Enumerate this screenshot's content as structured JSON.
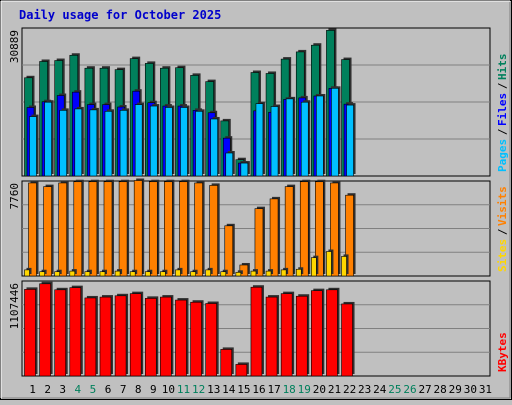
{
  "title": "Daily usage for October 2025",
  "colors": {
    "background": "#c0c0c0",
    "title": "#0000cc",
    "plot_bg": "#c0c0c0",
    "grid": "#808080",
    "hits": "#00805c",
    "files": "#0000ff",
    "pages": "#00c0ff",
    "visits": "#ff8000",
    "sites": "#ffd700",
    "kbytes": "#ff0000",
    "day_normal": "#000000",
    "day_weekend": "#00805c"
  },
  "chart_data": [
    {
      "type": "bar",
      "name": "hits-files-pages",
      "categories": [
        "1",
        "2",
        "3",
        "4",
        "5",
        "6",
        "7",
        "8",
        "9",
        "10",
        "11",
        "12",
        "13",
        "14",
        "15",
        "16",
        "17",
        "18",
        "19",
        "20",
        "21",
        "22",
        "23",
        "24",
        "25",
        "26",
        "27",
        "28",
        "29",
        "30",
        "31"
      ],
      "max_label": "30889",
      "ylim": [
        0,
        30889
      ],
      "side_labels": [
        "Pages",
        "Files",
        "Hits"
      ],
      "series": [
        {
          "name": "Hits",
          "values": [
            20500,
            23900,
            24100,
            25200,
            22500,
            22500,
            22200,
            24500,
            23500,
            22500,
            22600,
            21000,
            19700,
            11500,
            3400,
            21600,
            21400,
            24400,
            25900,
            27300,
            30400,
            24300,
            null,
            null,
            null,
            null,
            null,
            null,
            null,
            null,
            null
          ]
        },
        {
          "name": "Files",
          "values": [
            14300,
            15500,
            16800,
            17500,
            14900,
            14900,
            14400,
            17700,
            15300,
            14600,
            14600,
            13700,
            13200,
            7900,
            2700,
            13600,
            13300,
            16000,
            16300,
            16700,
            18300,
            15000,
            null,
            null,
            null,
            null,
            null,
            null,
            null,
            null,
            null
          ]
        },
        {
          "name": "Pages",
          "values": [
            12400,
            15400,
            13700,
            14000,
            13800,
            13500,
            13700,
            14900,
            14600,
            14300,
            14300,
            13500,
            11900,
            4800,
            2700,
            15100,
            14500,
            16100,
            15400,
            16700,
            18300,
            14800,
            null,
            null,
            null,
            null,
            null,
            null,
            null,
            null,
            null
          ]
        }
      ]
    },
    {
      "type": "bar",
      "name": "visits-sites",
      "categories": [
        "1",
        "2",
        "3",
        "4",
        "5",
        "6",
        "7",
        "8",
        "9",
        "10",
        "11",
        "12",
        "13",
        "14",
        "15",
        "16",
        "17",
        "18",
        "19",
        "20",
        "21",
        "22",
        "23",
        "24",
        "25",
        "26",
        "27",
        "28",
        "29",
        "30",
        "31"
      ],
      "max_label": "7760",
      "ylim": [
        0,
        7760
      ],
      "side_labels": [
        "Sites",
        "Visits"
      ],
      "series": [
        {
          "name": "Visits",
          "values": [
            7600,
            7300,
            7600,
            7700,
            7700,
            7700,
            7700,
            7800,
            7700,
            7700,
            7700,
            7600,
            7400,
            4100,
            900,
            5500,
            6300,
            7300,
            7700,
            7700,
            7600,
            6600,
            null,
            null,
            null,
            null,
            null,
            null,
            null,
            null,
            null
          ]
        },
        {
          "name": "Sites",
          "values": [
            500,
            350,
            350,
            400,
            350,
            350,
            400,
            350,
            350,
            350,
            500,
            350,
            500,
            350,
            300,
            400,
            400,
            500,
            550,
            1500,
            2000,
            1600,
            null,
            null,
            null,
            null,
            null,
            null,
            null,
            null,
            null
          ]
        }
      ]
    },
    {
      "type": "bar",
      "name": "kbytes",
      "categories": [
        "1",
        "2",
        "3",
        "4",
        "5",
        "6",
        "7",
        "8",
        "9",
        "10",
        "11",
        "12",
        "13",
        "14",
        "15",
        "16",
        "17",
        "18",
        "19",
        "20",
        "21",
        "22",
        "23",
        "24",
        "25",
        "26",
        "27",
        "28",
        "29",
        "30",
        "31"
      ],
      "max_label": "1107446",
      "ylim": [
        0,
        1107446
      ],
      "side_labels": [
        "KBytes"
      ],
      "series": [
        {
          "name": "KBytes",
          "values": [
            1010000,
            1075000,
            1005000,
            1030000,
            910000,
            920000,
            935000,
            960000,
            905000,
            920000,
            885000,
            860000,
            845000,
            310000,
            135000,
            1035000,
            920000,
            960000,
            930000,
            995000,
            1005000,
            840000,
            null,
            null,
            null,
            null,
            null,
            null,
            null,
            null,
            null
          ]
        }
      ]
    }
  ],
  "day_labels": [
    {
      "text": "1",
      "weekend": false
    },
    {
      "text": "2",
      "weekend": false
    },
    {
      "text": "3",
      "weekend": false
    },
    {
      "text": "4",
      "weekend": true
    },
    {
      "text": "5",
      "weekend": true
    },
    {
      "text": "6",
      "weekend": false
    },
    {
      "text": "7",
      "weekend": false
    },
    {
      "text": "8",
      "weekend": false
    },
    {
      "text": "9",
      "weekend": false
    },
    {
      "text": "10",
      "weekend": false
    },
    {
      "text": "11",
      "weekend": true
    },
    {
      "text": "12",
      "weekend": true
    },
    {
      "text": "13",
      "weekend": false
    },
    {
      "text": "14",
      "weekend": false
    },
    {
      "text": "15",
      "weekend": false
    },
    {
      "text": "16",
      "weekend": false
    },
    {
      "text": "17",
      "weekend": false
    },
    {
      "text": "18",
      "weekend": true
    },
    {
      "text": "19",
      "weekend": true
    },
    {
      "text": "20",
      "weekend": false
    },
    {
      "text": "21",
      "weekend": false
    },
    {
      "text": "22",
      "weekend": false
    },
    {
      "text": "23",
      "weekend": false
    },
    {
      "text": "24",
      "weekend": false
    },
    {
      "text": "25",
      "weekend": true
    },
    {
      "text": "26",
      "weekend": true
    },
    {
      "text": "27",
      "weekend": false
    },
    {
      "text": "28",
      "weekend": false
    },
    {
      "text": "29",
      "weekend": false
    },
    {
      "text": "30",
      "weekend": false
    },
    {
      "text": "31",
      "weekend": false
    }
  ]
}
